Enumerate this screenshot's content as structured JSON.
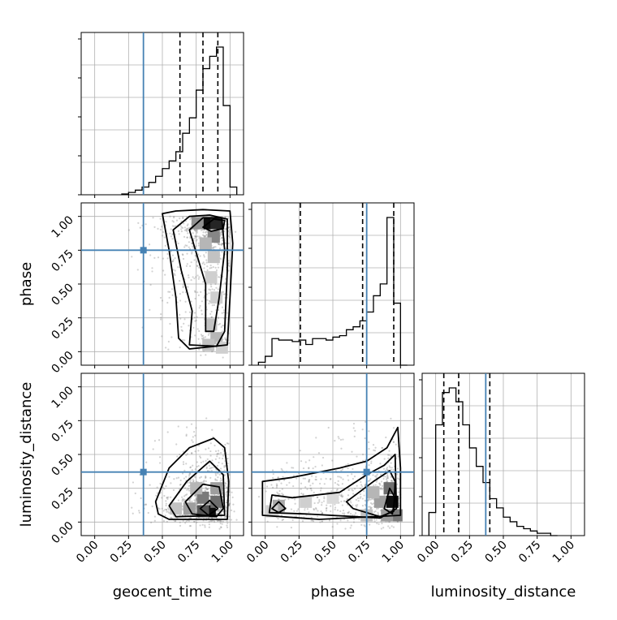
{
  "colors": {
    "truth": "#4682b4",
    "hist": "#000000",
    "grid": "#b0b0b0",
    "points": "#7f7f7f"
  },
  "chart_data": {
    "type": "corner",
    "parameters": [
      "geocent_time",
      "phase",
      "luminosity_distance"
    ],
    "tick_labels": [
      "0.00",
      "0.25",
      "0.50",
      "0.75",
      "1.00"
    ],
    "axis_range": [
      -0.1,
      1.1
    ],
    "grid": true,
    "truth": {
      "geocent_time": 0.36,
      "phase": 0.75,
      "luminosity_distance": 0.37
    },
    "quantiles": {
      "geocent_time": [
        0.63,
        0.8,
        0.91
      ],
      "phase": [
        0.26,
        0.72,
        0.95
      ],
      "luminosity_distance": [
        0.06,
        0.17,
        0.4
      ]
    },
    "histograms": {
      "geocent_time": {
        "bins": [
          0.2,
          0.25,
          0.3,
          0.35,
          0.4,
          0.45,
          0.5,
          0.55,
          0.6,
          0.65,
          0.7,
          0.75,
          0.8,
          0.85,
          0.9,
          0.95,
          1.0,
          1.05
        ],
        "counts": [
          0.005,
          0.015,
          0.03,
          0.05,
          0.08,
          0.12,
          0.17,
          0.22,
          0.28,
          0.4,
          0.5,
          0.68,
          0.82,
          0.9,
          0.96,
          0.58,
          0.05
        ]
      },
      "phase": {
        "bins": [
          -0.05,
          0.0,
          0.05,
          0.1,
          0.15,
          0.2,
          0.25,
          0.3,
          0.35,
          0.4,
          0.45,
          0.5,
          0.55,
          0.6,
          0.65,
          0.7,
          0.75,
          0.8,
          0.85,
          0.9,
          0.95,
          1.0,
          1.05
        ],
        "counts": [
          0.02,
          0.06,
          0.18,
          0.17,
          0.17,
          0.16,
          0.17,
          0.14,
          0.18,
          0.18,
          0.17,
          0.19,
          0.2,
          0.24,
          0.26,
          0.3,
          0.36,
          0.47,
          0.55,
          1.0,
          0.42,
          0.0
        ]
      },
      "luminosity_distance": {
        "bins": [
          -0.05,
          0.0,
          0.05,
          0.1,
          0.15,
          0.2,
          0.25,
          0.3,
          0.35,
          0.4,
          0.45,
          0.5,
          0.55,
          0.6,
          0.65,
          0.7,
          0.75,
          0.8,
          0.85,
          0.9
        ],
        "counts": [
          0.1,
          0.48,
          0.62,
          0.64,
          0.58,
          0.48,
          0.38,
          0.3,
          0.23,
          0.16,
          0.12,
          0.08,
          0.06,
          0.04,
          0.03,
          0.02,
          0.01,
          0.01,
          0.0
        ]
      }
    },
    "contours": {
      "phase_vs_geocent_time": [
        [
          [
            0.5,
            1.02
          ],
          [
            0.6,
            1.04
          ],
          [
            0.8,
            1.05
          ],
          [
            1.0,
            1.04
          ],
          [
            1.02,
            0.8
          ],
          [
            1.0,
            0.4
          ],
          [
            0.98,
            0.05
          ],
          [
            0.7,
            0.02
          ],
          [
            0.62,
            0.1
          ],
          [
            0.6,
            0.4
          ],
          [
            0.55,
            0.75
          ]
        ],
        [
          [
            0.58,
            0.9
          ],
          [
            0.7,
            1.0
          ],
          [
            0.85,
            1.01
          ],
          [
            0.98,
            0.98
          ],
          [
            0.98,
            0.6
          ],
          [
            0.96,
            0.15
          ],
          [
            0.9,
            0.04
          ],
          [
            0.7,
            0.05
          ],
          [
            0.72,
            0.3
          ],
          [
            0.64,
            0.6
          ]
        ],
        [
          [
            0.7,
            0.9
          ],
          [
            0.8,
            0.99
          ],
          [
            0.94,
            0.99
          ],
          [
            0.96,
            0.75
          ],
          [
            0.92,
            0.4
          ],
          [
            0.88,
            0.15
          ],
          [
            0.82,
            0.15
          ],
          [
            0.82,
            0.5
          ],
          [
            0.76,
            0.7
          ]
        ],
        [
          [
            0.8,
            0.92
          ],
          [
            0.88,
            0.98
          ],
          [
            0.96,
            0.97
          ],
          [
            0.95,
            0.91
          ],
          [
            0.86,
            0.89
          ]
        ]
      ],
      "luminosity_distance_vs_geocent_time": [
        [
          [
            0.45,
            0.15
          ],
          [
            0.55,
            0.4
          ],
          [
            0.7,
            0.55
          ],
          [
            0.88,
            0.62
          ],
          [
            0.96,
            0.55
          ],
          [
            0.99,
            0.3
          ],
          [
            0.98,
            0.02
          ],
          [
            0.55,
            0.02
          ],
          [
            0.47,
            0.06
          ]
        ],
        [
          [
            0.55,
            0.12
          ],
          [
            0.68,
            0.3
          ],
          [
            0.85,
            0.45
          ],
          [
            0.95,
            0.35
          ],
          [
            0.96,
            0.05
          ],
          [
            0.6,
            0.04
          ]
        ],
        [
          [
            0.67,
            0.15
          ],
          [
            0.8,
            0.28
          ],
          [
            0.92,
            0.26
          ],
          [
            0.95,
            0.1
          ],
          [
            0.9,
            0.04
          ],
          [
            0.72,
            0.06
          ]
        ],
        [
          [
            0.78,
            0.1
          ],
          [
            0.85,
            0.16
          ],
          [
            0.91,
            0.1
          ],
          [
            0.84,
            0.05
          ]
        ]
      ],
      "luminosity_distance_vs_phase": [
        [
          [
            -0.02,
            0.05
          ],
          [
            -0.02,
            0.3
          ],
          [
            0.2,
            0.33
          ],
          [
            0.55,
            0.4
          ],
          [
            0.75,
            0.45
          ],
          [
            0.9,
            0.55
          ],
          [
            0.98,
            0.7
          ],
          [
            1.0,
            0.4
          ],
          [
            1.0,
            0.05
          ],
          [
            0.4,
            0.02
          ]
        ],
        [
          [
            0.05,
            0.2
          ],
          [
            0.2,
            0.18
          ],
          [
            0.55,
            0.22
          ],
          [
            0.75,
            0.35
          ],
          [
            0.88,
            0.42
          ],
          [
            0.96,
            0.5
          ],
          [
            0.97,
            0.1
          ],
          [
            0.85,
            0.03
          ],
          [
            0.3,
            0.06
          ],
          [
            0.03,
            0.07
          ]
        ],
        [
          [
            0.05,
            0.1
          ],
          [
            0.1,
            0.15
          ],
          [
            0.15,
            0.1
          ],
          [
            0.1,
            0.07
          ]
        ],
        [
          [
            0.6,
            0.15
          ],
          [
            0.8,
            0.3
          ],
          [
            0.92,
            0.38
          ],
          [
            0.96,
            0.3
          ],
          [
            0.95,
            0.08
          ],
          [
            0.85,
            0.04
          ],
          [
            0.65,
            0.1
          ]
        ],
        [
          [
            0.88,
            0.1
          ],
          [
            0.92,
            0.25
          ],
          [
            0.96,
            0.18
          ],
          [
            0.94,
            0.06
          ]
        ]
      ]
    },
    "density": {
      "phase_vs_geocent_time": [
        [
          0.82,
          0.95,
          1.0
        ],
        [
          0.9,
          0.95,
          0.9
        ],
        [
          0.76,
          0.95,
          0.45
        ],
        [
          0.88,
          0.85,
          0.5
        ],
        [
          0.82,
          0.8,
          0.3
        ],
        [
          0.88,
          0.7,
          0.25
        ],
        [
          0.86,
          0.55,
          0.2
        ],
        [
          0.9,
          0.4,
          0.2
        ],
        [
          0.86,
          0.2,
          0.25
        ],
        [
          0.9,
          0.1,
          0.3
        ],
        [
          0.84,
          0.05,
          0.25
        ],
        [
          0.94,
          0.03,
          0.2
        ]
      ],
      "luminosity_distance_vs_geocent_time": [
        [
          0.85,
          0.08,
          1.0
        ],
        [
          0.8,
          0.08,
          0.7
        ],
        [
          0.9,
          0.15,
          0.6
        ],
        [
          0.8,
          0.18,
          0.55
        ],
        [
          0.7,
          0.1,
          0.4
        ],
        [
          0.9,
          0.25,
          0.4
        ],
        [
          0.75,
          0.25,
          0.3
        ],
        [
          0.6,
          0.1,
          0.25
        ]
      ],
      "luminosity_distance_vs_phase": [
        [
          0.94,
          0.15,
          1.0
        ],
        [
          0.92,
          0.25,
          0.6
        ],
        [
          0.97,
          0.05,
          0.55
        ],
        [
          0.9,
          0.05,
          0.4
        ],
        [
          0.85,
          0.15,
          0.4
        ],
        [
          0.8,
          0.22,
          0.3
        ],
        [
          0.75,
          0.05,
          0.25
        ],
        [
          0.1,
          0.12,
          0.35
        ],
        [
          0.05,
          0.08,
          0.2
        ],
        [
          0.3,
          0.15,
          0.2
        ],
        [
          0.5,
          0.18,
          0.15
        ]
      ]
    }
  }
}
